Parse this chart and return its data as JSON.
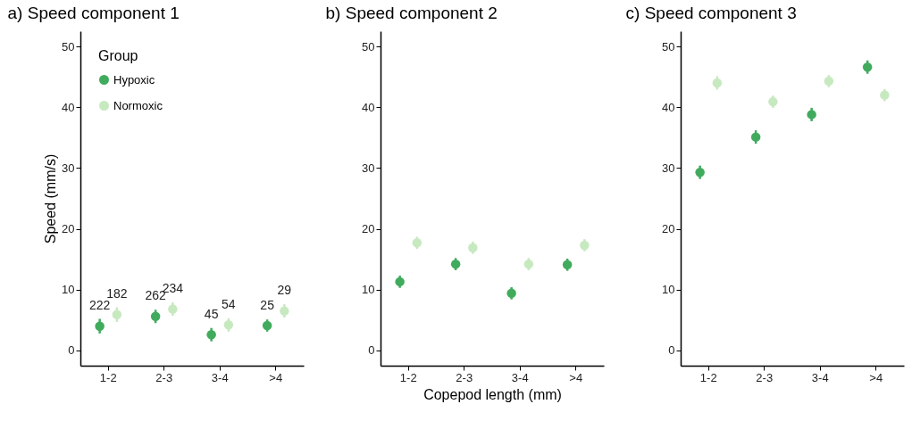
{
  "chart_data": [
    {
      "type": "scatter",
      "title": "a) Speed component 1",
      "ylabel": "Speed (mm/s)",
      "legend_title": "Group",
      "legend": "top left",
      "marker": "circle",
      "categories": [
        "1-2",
        "2-3",
        "3-4",
        ">4"
      ],
      "ylim": [
        -2.5,
        52.5
      ],
      "yticks": [
        0,
        10,
        20,
        30,
        40,
        50
      ],
      "series": [
        {
          "name": "Hypoxic",
          "color": "#41ab5d",
          "values": [
            4.0,
            5.6,
            2.6,
            4.1
          ],
          "errors": [
            1.2,
            1.1,
            1.1,
            1.0
          ]
        },
        {
          "name": "Normoxic",
          "color": "#c7e9c0",
          "values": [
            5.9,
            6.8,
            4.2,
            6.5
          ],
          "errors": [
            1.2,
            1.1,
            1.1,
            1.1
          ]
        }
      ],
      "annotations": [
        {
          "text": "222",
          "x": "1-2",
          "y": 4.0
        },
        {
          "text": "182",
          "x": "1-2",
          "y": 5.9
        },
        {
          "text": "262",
          "x": "2-3",
          "y": 5.6
        },
        {
          "text": "234",
          "x": "2-3",
          "y": 6.8
        },
        {
          "text": "45",
          "x": "3-4",
          "y": 2.6
        },
        {
          "text": "54",
          "x": "3-4",
          "y": 4.2
        },
        {
          "text": "25",
          "x": ">4",
          "y": 4.1
        },
        {
          "text": "29",
          "x": ">4",
          "y": 6.5
        }
      ]
    },
    {
      "type": "scatter",
      "title": "b) Speed component 2",
      "xlabel": "Copepod length (mm)",
      "marker": "circle",
      "categories": [
        "1-2",
        "2-3",
        "3-4",
        ">4"
      ],
      "ylim": [
        -2.5,
        52.5
      ],
      "yticks": [
        0,
        10,
        20,
        30,
        40,
        50
      ],
      "series": [
        {
          "name": "Hypoxic",
          "color": "#41ab5d",
          "values": [
            11.3,
            14.2,
            9.4,
            14.1
          ],
          "errors": [
            1.0,
            1.0,
            1.0,
            1.0
          ]
        },
        {
          "name": "Normoxic",
          "color": "#c7e9c0",
          "values": [
            17.7,
            16.9,
            14.2,
            17.3
          ],
          "errors": [
            1.0,
            1.0,
            1.0,
            1.0
          ]
        }
      ]
    },
    {
      "type": "scatter",
      "title": "c) Speed component 3",
      "marker": "circle",
      "categories": [
        "1-2",
        "2-3",
        "3-4",
        ">4"
      ],
      "ylim": [
        -2.5,
        52.5
      ],
      "yticks": [
        0,
        10,
        20,
        30,
        40,
        50
      ],
      "series": [
        {
          "name": "Hypoxic",
          "color": "#41ab5d",
          "values": [
            29.3,
            35.1,
            38.8,
            46.6
          ],
          "errors": [
            1.1,
            1.1,
            1.1,
            1.1
          ]
        },
        {
          "name": "Normoxic",
          "color": "#c7e9c0",
          "values": [
            44.0,
            40.9,
            44.3,
            42.0
          ],
          "errors": [
            1.1,
            1.0,
            1.0,
            1.0
          ]
        }
      ]
    }
  ]
}
